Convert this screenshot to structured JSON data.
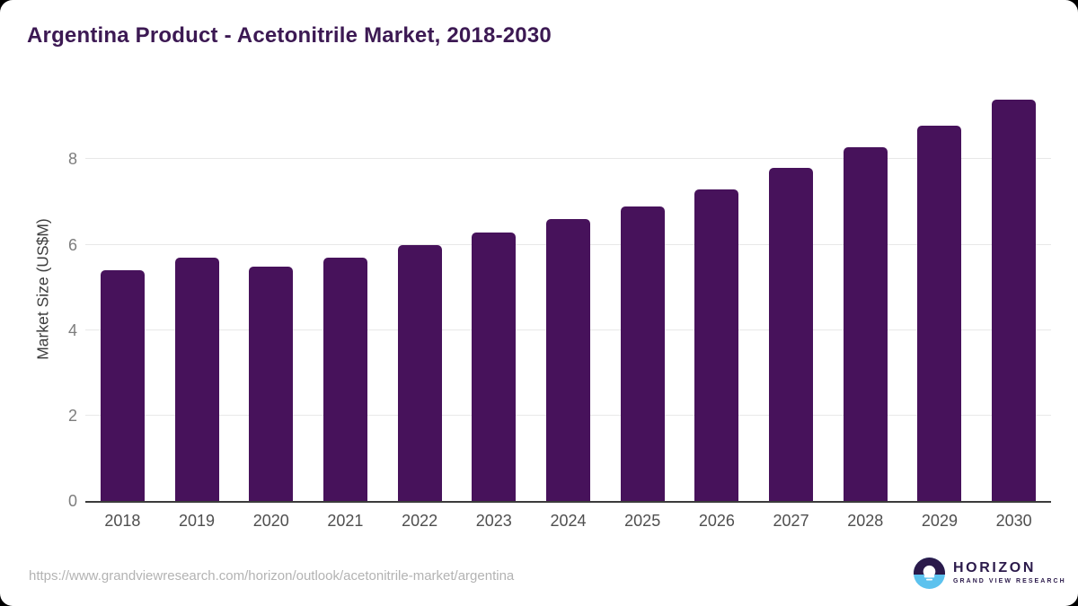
{
  "page": {
    "background_color": "#ffffff",
    "frame_color": "#000000"
  },
  "chart_data": {
    "type": "bar",
    "title": "Argentina Product - Acetonitrile Market, 2018-2030",
    "xlabel": "",
    "ylabel": "Market Size (US$M)",
    "categories": [
      "2018",
      "2019",
      "2020",
      "2021",
      "2022",
      "2023",
      "2024",
      "2025",
      "2026",
      "2027",
      "2028",
      "2029",
      "2030"
    ],
    "values": [
      5.4,
      5.7,
      5.48,
      5.7,
      5.99,
      6.29,
      6.6,
      6.9,
      7.3,
      7.8,
      8.28,
      8.79,
      9.4
    ],
    "yticks": [
      0,
      2,
      4,
      6,
      8
    ],
    "ylim": [
      0,
      9.67
    ],
    "grid": "horizontal",
    "legend": "none",
    "bar_color": "#47125b",
    "axis_color": "#3b3b3b",
    "gridline_color": "#e8e8e8",
    "title_color": "#3c1953"
  },
  "footer": {
    "source_url": "https://www.grandviewresearch.com/horizon/outlook/acetonitrile-market/argentina",
    "logo": {
      "name": "HORIZON",
      "subtitle": "GRAND VIEW RESEARCH",
      "dark_color": "#2b1a4b",
      "blue_color": "#5cc2ee"
    }
  }
}
